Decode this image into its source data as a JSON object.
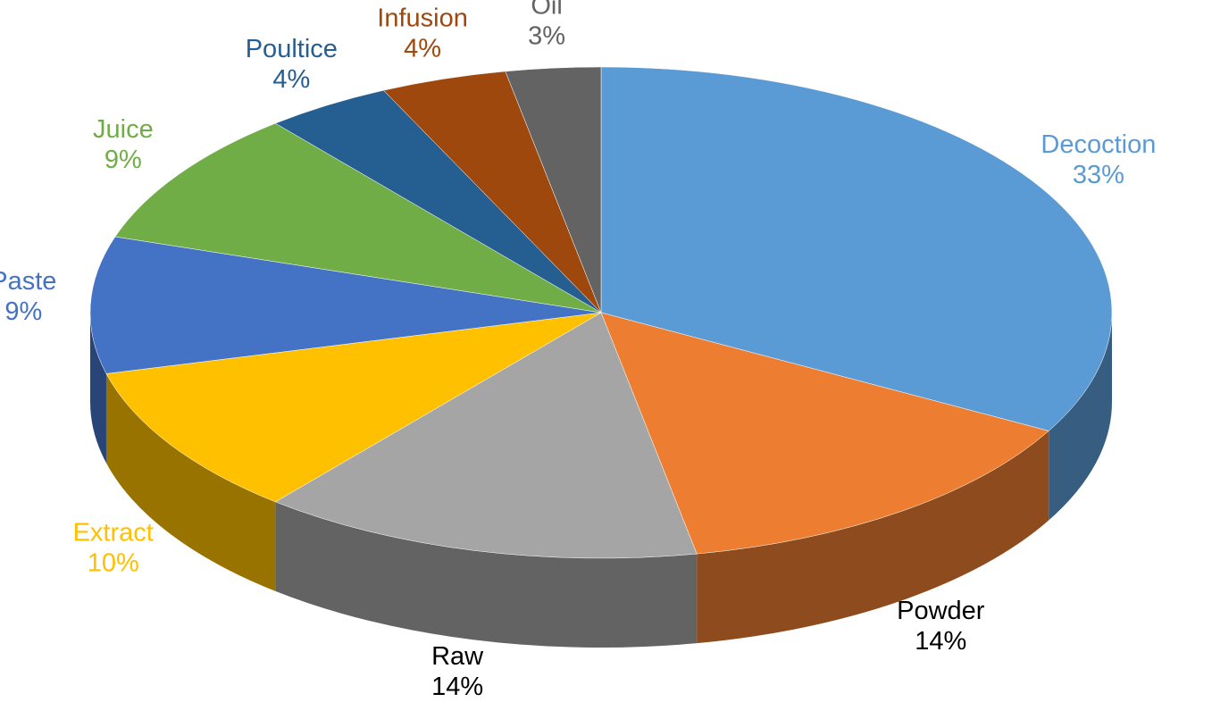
{
  "chart_data": {
    "type": "pie",
    "categories": [
      "Decoction",
      "Powder",
      "Raw",
      "Extract",
      "Paste",
      "Juice",
      "Poultice",
      "Infusion",
      "Oil"
    ],
    "values": [
      33,
      14,
      14,
      10,
      9,
      9,
      4,
      4,
      3
    ],
    "value_labels": [
      "33%",
      "14%",
      "14%",
      "10%",
      "9%",
      "9%",
      "4%",
      "4%",
      "3%"
    ],
    "colors": [
      "#5b9bd5",
      "#ed7d31",
      "#a5a5a5",
      "#ffc000",
      "#4472c4",
      "#70ad47",
      "#255e91",
      "#9e480e",
      "#636363"
    ],
    "label_colors": [
      "#5b9bd5",
      "#000000",
      "#000000",
      "#ffc000",
      "#4472c4",
      "#70ad47",
      "#255e91",
      "#9e480e",
      "#636363"
    ]
  }
}
